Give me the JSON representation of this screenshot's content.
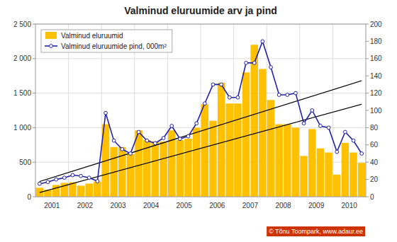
{
  "chart_data": {
    "type": "bar",
    "title": "Valminud eluruumide arv ja pind",
    "categories": [
      "2001",
      null,
      null,
      null,
      "2002",
      null,
      null,
      null,
      "2003",
      null,
      null,
      null,
      "2004",
      null,
      null,
      null,
      "2005",
      null,
      null,
      null,
      "2006",
      null,
      null,
      null,
      "2007",
      null,
      null,
      null,
      "2008",
      null,
      null,
      null,
      "2009",
      null,
      null,
      null,
      "2010",
      null,
      null,
      null
    ],
    "series": [
      {
        "name": "Valminud eluruumid",
        "type": "bar",
        "color": "#FFC000",
        "values": [
          130,
          100,
          170,
          200,
          210,
          160,
          190,
          220,
          1050,
          720,
          720,
          620,
          960,
          820,
          800,
          800,
          960,
          820,
          840,
          1000,
          1340,
          1100,
          1650,
          1350,
          1350,
          1800,
          2200,
          1850,
          1400,
          1050,
          1050,
          1000,
          590,
          980,
          700,
          640,
          320,
          780,
          640,
          490
        ]
      },
      {
        "name": "Valminud eluruumide pind, 000m²",
        "type": "line",
        "axis": "y2",
        "color": "#2222AA",
        "marker": "circle",
        "values": [
          15,
          17,
          20,
          22,
          25,
          24,
          22,
          18,
          97,
          65,
          55,
          50,
          75,
          65,
          62,
          68,
          82,
          67,
          70,
          85,
          108,
          130,
          130,
          115,
          115,
          155,
          155,
          180,
          150,
          118,
          118,
          120,
          85,
          100,
          82,
          80,
          52,
          75,
          65,
          50
        ]
      }
    ],
    "trend_lines": [
      {
        "color": "#000000",
        "values": [
          220,
          1680
        ]
      },
      {
        "color": "#000000",
        "values": [
          60,
          1340
        ]
      }
    ],
    "ylim": [
      0,
      2500
    ],
    "yticks": [
      0,
      500,
      {
        "value": 1000,
        "label": "1 000"
      },
      {
        "value": 1500,
        "label": "1 500"
      },
      {
        "value": 2000,
        "label": "2 000"
      },
      {
        "value": 2500,
        "label": "2 500"
      }
    ],
    "y2lim": [
      0,
      200
    ],
    "y2ticks": [
      0,
      20,
      40,
      60,
      80,
      100,
      120,
      140,
      160,
      180,
      200
    ],
    "grid": true,
    "legend": "upper left",
    "annotations": [
      {
        "text": "© Tõnu Toompark, www.adaur.ee",
        "color": "#CC3300"
      }
    ]
  }
}
